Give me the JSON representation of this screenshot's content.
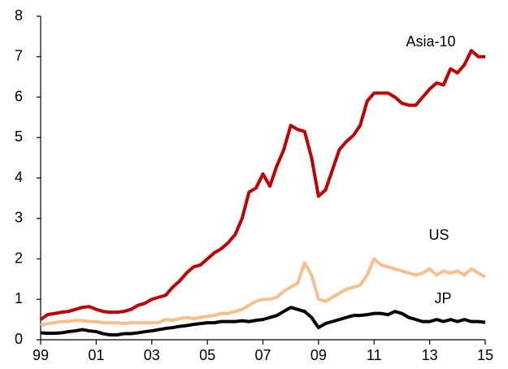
{
  "chart_data": {
    "type": "line",
    "x": [
      1999,
      1999.25,
      1999.5,
      1999.75,
      2000,
      2000.25,
      2000.5,
      2000.75,
      2001,
      2001.25,
      2001.5,
      2001.75,
      2002,
      2002.25,
      2002.5,
      2002.75,
      2003,
      2003.25,
      2003.5,
      2003.75,
      2004,
      2004.25,
      2004.5,
      2004.75,
      2005,
      2005.25,
      2005.5,
      2005.75,
      2006,
      2006.25,
      2006.5,
      2006.75,
      2007,
      2007.25,
      2007.5,
      2007.75,
      2008,
      2008.25,
      2008.5,
      2008.75,
      2009,
      2009.25,
      2009.5,
      2009.75,
      2010,
      2010.25,
      2010.5,
      2010.75,
      2011,
      2011.25,
      2011.5,
      2011.75,
      2012,
      2012.25,
      2012.5,
      2012.75,
      2013,
      2013.25,
      2013.5,
      2013.75,
      2014,
      2014.25,
      2014.5,
      2014.75,
      2015
    ],
    "series": [
      {
        "name": "Asia-10",
        "color": "#c00000",
        "values": [
          0.5,
          0.62,
          0.65,
          0.68,
          0.7,
          0.75,
          0.8,
          0.82,
          0.75,
          0.7,
          0.68,
          0.68,
          0.7,
          0.75,
          0.85,
          0.9,
          1.0,
          1.05,
          1.1,
          1.3,
          1.45,
          1.65,
          1.8,
          1.85,
          2.0,
          2.15,
          2.25,
          2.4,
          2.6,
          3.0,
          3.65,
          3.75,
          4.1,
          3.8,
          4.3,
          4.7,
          5.3,
          5.2,
          5.15,
          4.5,
          3.55,
          3.7,
          4.2,
          4.7,
          4.9,
          5.05,
          5.3,
          5.9,
          6.1,
          6.1,
          6.1,
          6.0,
          5.85,
          5.8,
          5.8,
          6.0,
          6.2,
          6.35,
          6.3,
          6.7,
          6.6,
          6.8,
          7.15,
          7.0,
          7.0
        ]
      },
      {
        "name": "US",
        "color": "#f5c08c",
        "values": [
          0.35,
          0.4,
          0.42,
          0.45,
          0.45,
          0.48,
          0.47,
          0.45,
          0.45,
          0.42,
          0.42,
          0.42,
          0.4,
          0.42,
          0.42,
          0.42,
          0.42,
          0.42,
          0.5,
          0.48,
          0.52,
          0.55,
          0.52,
          0.55,
          0.58,
          0.6,
          0.65,
          0.65,
          0.7,
          0.75,
          0.85,
          0.95,
          1.0,
          1.0,
          1.05,
          1.2,
          1.3,
          1.4,
          1.9,
          1.6,
          1.0,
          0.95,
          1.05,
          1.15,
          1.25,
          1.3,
          1.35,
          1.6,
          2.0,
          1.85,
          1.8,
          1.75,
          1.7,
          1.65,
          1.6,
          1.65,
          1.75,
          1.6,
          1.7,
          1.65,
          1.7,
          1.6,
          1.75,
          1.65,
          1.55
        ]
      },
      {
        "name": "JP",
        "color": "#000000",
        "values": [
          0.17,
          0.16,
          0.16,
          0.17,
          0.2,
          0.22,
          0.25,
          0.22,
          0.2,
          0.15,
          0.12,
          0.12,
          0.15,
          0.15,
          0.17,
          0.2,
          0.22,
          0.25,
          0.28,
          0.3,
          0.33,
          0.35,
          0.38,
          0.4,
          0.42,
          0.42,
          0.45,
          0.45,
          0.45,
          0.47,
          0.45,
          0.48,
          0.5,
          0.55,
          0.6,
          0.7,
          0.8,
          0.75,
          0.7,
          0.55,
          0.3,
          0.4,
          0.45,
          0.5,
          0.55,
          0.6,
          0.6,
          0.62,
          0.65,
          0.65,
          0.62,
          0.7,
          0.65,
          0.55,
          0.5,
          0.45,
          0.45,
          0.5,
          0.45,
          0.5,
          0.45,
          0.5,
          0.45,
          0.45,
          0.43
        ]
      }
    ],
    "xlim": [
      1999,
      2015
    ],
    "xticks": [
      {
        "value": 1999,
        "label": "99"
      },
      {
        "value": 2001,
        "label": "01"
      },
      {
        "value": 2003,
        "label": "03"
      },
      {
        "value": 2005,
        "label": "05"
      },
      {
        "value": 2007,
        "label": "07"
      },
      {
        "value": 2009,
        "label": "09"
      },
      {
        "value": 2011,
        "label": "11"
      },
      {
        "value": 2013,
        "label": "13"
      },
      {
        "value": 2015,
        "label": "15"
      }
    ],
    "ylim": [
      0,
      8
    ],
    "yticks": [
      0,
      1,
      2,
      3,
      4,
      5,
      6,
      7,
      8
    ],
    "grid": false
  }
}
